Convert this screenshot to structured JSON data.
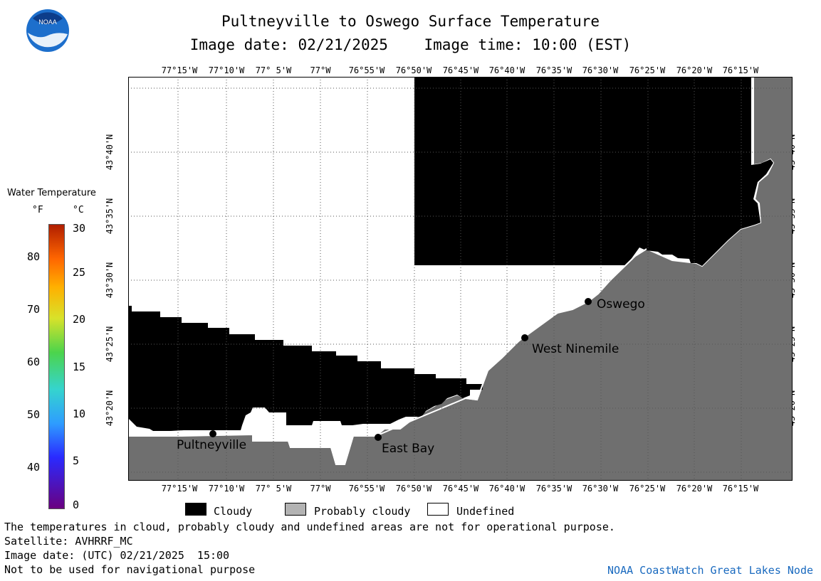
{
  "header": {
    "title": "Pultneyville to Oswego Surface Temperature",
    "subtitle": "Image date: 02/21/2025    Image time: 10:00 (EST)"
  },
  "logo": {
    "icon": "noaa-logo-icon",
    "text": "NOAA"
  },
  "map": {
    "lon_labels": [
      "77°15'W",
      "77°10'W",
      "77° 5'W",
      "77°W",
      "76°55'W",
      "76°50'W",
      "76°45'W",
      "76°40'W",
      "76°35'W",
      "76°30'W",
      "76°25'W",
      "76°20'W",
      "76°15'W"
    ],
    "lat_labels": [
      "43°40'N",
      "43°35'N",
      "43°30'N",
      "43°25'N",
      "43°20'N"
    ],
    "places": [
      {
        "name": "Pultneyville"
      },
      {
        "name": "East Bay"
      },
      {
        "name": "West Ninemile"
      },
      {
        "name": "Oswego"
      }
    ],
    "colors": {
      "cloudy": "#000000",
      "probably_cloudy": "#6f6f6f",
      "undefined": "#ffffff"
    }
  },
  "temperature_legend": {
    "title": "Water Temperature",
    "unit_f": "°F",
    "unit_c": "°C",
    "f_ticks": [
      "80",
      "70",
      "60",
      "50",
      "40"
    ],
    "c_ticks": [
      "30",
      "25",
      "20",
      "15",
      "10",
      "5",
      "0"
    ]
  },
  "key": {
    "cloudy": "Cloudy",
    "probably_cloudy": "Probably cloudy",
    "undefined": "Undefined"
  },
  "notes": {
    "disclaimer": "The temperatures in cloud, probably cloudy and undefined areas are not for operational purpose.",
    "satellite": "Satellite: AVHRRF_MC",
    "utc_date": "Image date: (UTC) 02/21/2025  15:00",
    "navigation": "Not to be used for navigational purpose",
    "credit": "NOAA CoastWatch Great Lakes Node"
  }
}
